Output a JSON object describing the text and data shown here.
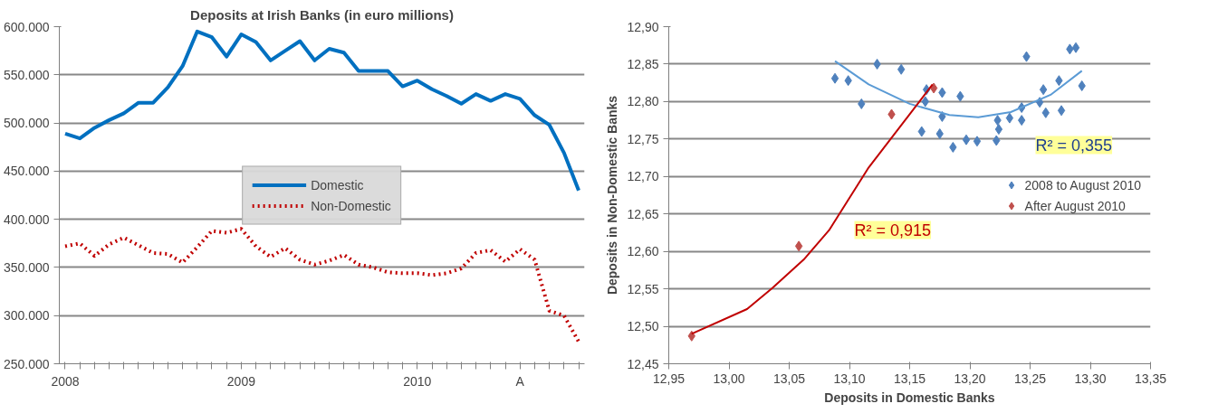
{
  "chart_data": [
    {
      "type": "line",
      "title": "Deposits at Irish Banks (in euro millions)",
      "categories": [
        "2008",
        null,
        null,
        null,
        null,
        null,
        null,
        null,
        null,
        null,
        null,
        null,
        "2009",
        null,
        null,
        null,
        null,
        null,
        null,
        null,
        null,
        null,
        null,
        null,
        "2010",
        null,
        null,
        null,
        null,
        null,
        null,
        "A",
        null,
        null,
        null,
        null
      ],
      "ylim": [
        250000,
        600000
      ],
      "yticks": [
        {
          "value": 250000,
          "label": "250.000"
        },
        {
          "value": 300000,
          "label": "300.000"
        },
        {
          "value": 350000,
          "label": "350.000"
        },
        {
          "value": 400000,
          "label": "400.000"
        },
        {
          "value": 450000,
          "label": "450.000"
        },
        {
          "value": 500000,
          "label": "500.000"
        },
        {
          "value": 550000,
          "label": "550.000"
        },
        {
          "value": 600000,
          "label": "600.000"
        }
      ],
      "grid": "y",
      "legend": "center",
      "marker": "none",
      "series": [
        {
          "name": "Domestic",
          "color": "#0070c0",
          "line_style": "solid",
          "values": [
            489000,
            484000,
            495000,
            503000,
            510000,
            521000,
            521000,
            537000,
            559000,
            595000,
            589000,
            569000,
            592000,
            584000,
            565000,
            575000,
            585000,
            565000,
            577000,
            573000,
            554000,
            554000,
            554000,
            538000,
            544000,
            535000,
            528000,
            520000,
            530000,
            523000,
            530000,
            525000,
            508000,
            498000,
            469000,
            430000
          ]
        },
        {
          "name": "Non-Domestic",
          "color": "#c00000",
          "line_style": "dotted",
          "values": [
            372000,
            375000,
            362000,
            374000,
            381000,
            373000,
            365000,
            364000,
            355000,
            371000,
            388000,
            386000,
            390000,
            372000,
            361000,
            370000,
            358000,
            353000,
            357000,
            363000,
            353000,
            350000,
            345000,
            344000,
            344000,
            342000,
            344000,
            349000,
            365000,
            368000,
            356000,
            369000,
            358000,
            305000,
            300000,
            273000
          ]
        }
      ]
    },
    {
      "type": "scatter",
      "xlabel": "Deposits in Domestic Banks",
      "ylabel": "Deposits in Non-Domestic Banks",
      "xlim": [
        12.95,
        13.35
      ],
      "xticks": [
        {
          "value": 12.95,
          "label": "12,95"
        },
        {
          "value": 13.0,
          "label": "13,00"
        },
        {
          "value": 13.05,
          "label": "13,05"
        },
        {
          "value": 13.1,
          "label": "13,10"
        },
        {
          "value": 13.15,
          "label": "13,15"
        },
        {
          "value": 13.2,
          "label": "13,20"
        },
        {
          "value": 13.25,
          "label": "13,25"
        },
        {
          "value": 13.3,
          "label": "13,30"
        },
        {
          "value": 13.35,
          "label": "13,35"
        }
      ],
      "ylim": [
        12.45,
        12.9
      ],
      "yticks": [
        {
          "value": 12.45,
          "label": "12,45"
        },
        {
          "value": 12.5,
          "label": "12,50"
        },
        {
          "value": 12.55,
          "label": "12,55"
        },
        {
          "value": 12.6,
          "label": "12,60"
        },
        {
          "value": 12.65,
          "label": "12,65"
        },
        {
          "value": 12.7,
          "label": "12,70"
        },
        {
          "value": 12.75,
          "label": "12,75"
        },
        {
          "value": 12.8,
          "label": "12,80"
        },
        {
          "value": 12.85,
          "label": "12,85"
        },
        {
          "value": 12.9,
          "label": "12,90"
        }
      ],
      "grid": "y",
      "legend": "right",
      "annotations": [
        "R² = 0,355",
        "R² = 0,915"
      ],
      "series": [
        {
          "name": "2008 to August 2010",
          "color": "#4f81bd",
          "marker": "diamond",
          "x": [
            13.088,
            13.099,
            13.11,
            13.123,
            13.143,
            13.16,
            13.163,
            13.164,
            13.175,
            13.177,
            13.177,
            13.186,
            13.192,
            13.197,
            13.206,
            13.222,
            13.223,
            13.224,
            13.233,
            13.243,
            13.243,
            13.247,
            13.258,
            13.261,
            13.263,
            13.274,
            13.276,
            13.283,
            13.288,
            13.293
          ],
          "values": [
            12.831,
            12.828,
            12.797,
            12.85,
            12.843,
            12.76,
            12.8,
            12.816,
            12.757,
            12.78,
            12.812,
            12.739,
            12.807,
            12.749,
            12.747,
            12.748,
            12.775,
            12.763,
            12.778,
            12.775,
            12.792,
            12.86,
            12.799,
            12.816,
            12.785,
            12.828,
            12.788,
            12.87,
            12.872,
            12.821
          ]
        },
        {
          "name": "After August 2010",
          "color": "#c0504d",
          "marker": "diamond",
          "x": [
            12.969,
            13.058,
            13.135,
            13.17
          ],
          "values": [
            12.487,
            12.607,
            12.783,
            12.818
          ]
        },
        {
          "type": "line",
          "color": "#5b9bd5",
          "x": [
            13.088,
            13.116,
            13.15,
            13.183,
            13.207,
            13.234,
            13.267,
            13.293
          ],
          "values": [
            12.854,
            12.823,
            12.797,
            12.782,
            12.779,
            12.786,
            12.809,
            12.841
          ]
        },
        {
          "type": "line",
          "color": "#c00000",
          "x": [
            12.969,
            13.015,
            13.036,
            13.062,
            13.083,
            13.116,
            13.16,
            13.169
          ],
          "values": [
            12.49,
            12.523,
            12.551,
            12.589,
            12.628,
            12.712,
            12.804,
            12.823
          ]
        }
      ]
    }
  ]
}
